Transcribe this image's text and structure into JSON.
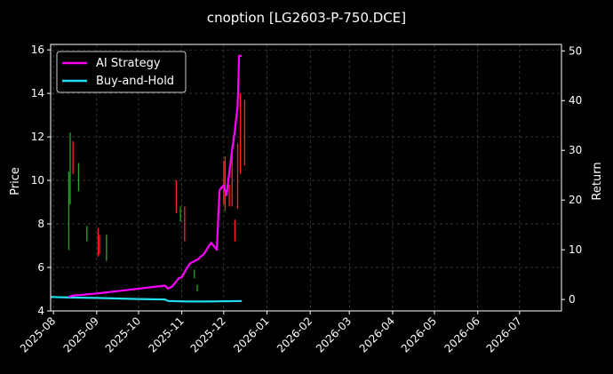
{
  "chart_data": {
    "type": "line",
    "title": "cnoption [LG2603-P-750.DCE]",
    "ylabel_left": "Price",
    "ylabel_right": "Return",
    "xlabel": "",
    "ylim_left": [
      4,
      16.25
    ],
    "ylim_right": [
      -2.3,
      51.3
    ],
    "xlim": [
      "2025-07-30",
      "2026-07-31"
    ],
    "yticks_left": [
      4,
      6,
      8,
      10,
      12,
      14,
      16
    ],
    "yticks_right": [
      0,
      10,
      20,
      30,
      40,
      50
    ],
    "xticks": [
      "2025-08",
      "2025-09",
      "2025-10",
      "2025-11",
      "2025-12",
      "2026-01",
      "2026-02",
      "2026-03",
      "2026-04",
      "2026-05",
      "2026-06",
      "2026-07"
    ],
    "grid": true,
    "legend_position": "top-left",
    "colors": {
      "up": "#ff2222",
      "down": "#22aa22",
      "ai": "#ff00ff",
      "bh": "#22ddee",
      "grid": "#555555",
      "background": "#000000"
    },
    "series": [
      {
        "name": "AI Strategy",
        "color": "#ff00ff",
        "axis": "right",
        "x": [
          "2025-08-12",
          "2025-08-15",
          "2025-08-20",
          "2025-09-01",
          "2025-10-20",
          "2025-10-22",
          "2025-10-25",
          "2025-10-30",
          "2025-11-01",
          "2025-11-05",
          "2025-11-07",
          "2025-11-12",
          "2025-11-17",
          "2025-11-20",
          "2025-11-22",
          "2025-11-26",
          "2025-11-28",
          "2025-12-01",
          "2025-12-03",
          "2025-12-05",
          "2025-12-07",
          "2025-12-09",
          "2025-12-11",
          "2025-12-12",
          "2025-12-14"
        ],
        "y": [
          0.5,
          0.8,
          0.9,
          1.2,
          2.8,
          2.2,
          2.6,
          4.3,
          4.5,
          6.5,
          7.3,
          8.0,
          9.2,
          10.6,
          11.4,
          10.0,
          22.0,
          23.0,
          21.0,
          25.5,
          30.0,
          34.0,
          39.0,
          49.0,
          49.0
        ]
      },
      {
        "name": "Buy-and-Hold",
        "color": "#22ddee",
        "axis": "right",
        "x": [
          "2025-07-30",
          "2025-08-12",
          "2025-09-01",
          "2025-10-01",
          "2025-10-20",
          "2025-10-22",
          "2025-11-05",
          "2025-11-20",
          "2025-12-14"
        ],
        "y": [
          0.5,
          0.4,
          0.3,
          0.1,
          0.0,
          -0.3,
          -0.4,
          -0.4,
          -0.3
        ]
      }
    ],
    "candles": [
      {
        "date": "2025-08-12",
        "low": 6.8,
        "high": 10.4,
        "dir": "down"
      },
      {
        "date": "2025-08-13",
        "low": 8.9,
        "high": 12.2,
        "dir": "down"
      },
      {
        "date": "2025-08-15",
        "low": 10.3,
        "high": 11.8,
        "dir": "up"
      },
      {
        "date": "2025-08-19",
        "low": 9.5,
        "high": 10.8,
        "dir": "down"
      },
      {
        "date": "2025-08-25",
        "low": 7.2,
        "high": 7.9,
        "dir": "down"
      },
      {
        "date": "2025-09-02",
        "low": 6.5,
        "high": 7.8,
        "dir": "up"
      },
      {
        "date": "2025-09-03",
        "low": 6.6,
        "high": 7.5,
        "dir": "up"
      },
      {
        "date": "2025-09-08",
        "low": 6.3,
        "high": 7.5,
        "dir": "down"
      },
      {
        "date": "2025-10-28",
        "low": 8.5,
        "high": 10.0,
        "dir": "up"
      },
      {
        "date": "2025-10-31",
        "low": 8.1,
        "high": 8.8,
        "dir": "down"
      },
      {
        "date": "2025-11-03",
        "low": 7.2,
        "high": 8.8,
        "dir": "up"
      },
      {
        "date": "2025-11-10",
        "low": 5.5,
        "high": 5.9,
        "dir": "down"
      },
      {
        "date": "2025-11-12",
        "low": 4.9,
        "high": 5.2,
        "dir": "down"
      },
      {
        "date": "2025-11-27",
        "low": 8.4,
        "high": 8.7,
        "dir": "up"
      },
      {
        "date": "2025-12-01",
        "low": 8.9,
        "high": 10.9,
        "dir": "up"
      },
      {
        "date": "2025-12-02",
        "low": 8.6,
        "high": 11.1,
        "dir": "up"
      },
      {
        "date": "2025-12-05",
        "low": 8.8,
        "high": 9.8,
        "dir": "up"
      },
      {
        "date": "2025-12-07",
        "low": 8.8,
        "high": 11.6,
        "dir": "up"
      },
      {
        "date": "2025-12-09",
        "low": 7.2,
        "high": 8.2,
        "dir": "up"
      },
      {
        "date": "2025-12-11",
        "low": 8.7,
        "high": 11.7,
        "dir": "up"
      },
      {
        "date": "2025-12-13",
        "low": 10.3,
        "high": 14.0,
        "dir": "up"
      },
      {
        "date": "2025-12-16",
        "low": 10.7,
        "high": 13.7,
        "dir": "up"
      }
    ]
  }
}
